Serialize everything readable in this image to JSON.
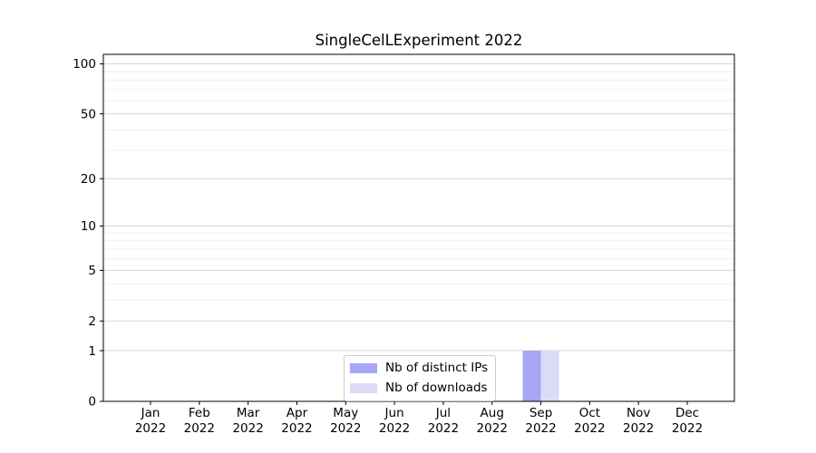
{
  "chart_data": {
    "type": "bar",
    "title": "SingleCelLExperiment 2022",
    "categories": [
      {
        "month": "Jan",
        "year": "2022"
      },
      {
        "month": "Feb",
        "year": "2022"
      },
      {
        "month": "Mar",
        "year": "2022"
      },
      {
        "month": "Apr",
        "year": "2022"
      },
      {
        "month": "May",
        "year": "2022"
      },
      {
        "month": "Jun",
        "year": "2022"
      },
      {
        "month": "Jul",
        "year": "2022"
      },
      {
        "month": "Aug",
        "year": "2022"
      },
      {
        "month": "Sep",
        "year": "2022"
      },
      {
        "month": "Oct",
        "year": "2022"
      },
      {
        "month": "Nov",
        "year": "2022"
      },
      {
        "month": "Dec",
        "year": "2022"
      }
    ],
    "series": [
      {
        "name": "Nb of distinct IPs",
        "color": "#a6a6f6",
        "values": [
          0,
          0,
          0,
          0,
          0,
          0,
          0,
          0,
          1,
          0,
          0,
          0
        ]
      },
      {
        "name": "Nb of downloads",
        "color": "#dbdbf8",
        "values": [
          0,
          0,
          0,
          0,
          0,
          0,
          0,
          0,
          1,
          0,
          0,
          0
        ]
      }
    ],
    "xlabel": "",
    "ylabel": "",
    "yscale": "log1p",
    "ylim": [
      0,
      114
    ],
    "yticks_major": [
      0,
      1,
      2,
      5,
      10,
      20,
      50,
      100
    ],
    "yticks_minor": [
      3,
      4,
      6,
      7,
      8,
      9,
      30,
      40,
      60,
      70,
      80,
      90
    ],
    "grid": {
      "enabled": true,
      "which": "both",
      "major_color": "#d6d6d6",
      "minor_color": "#efefef"
    },
    "legend": {
      "position": "lower-center-inside",
      "border_color": "#cccccc",
      "background": "#ffffff"
    },
    "axis_color": "#000000",
    "plot_background": "#ffffff"
  }
}
